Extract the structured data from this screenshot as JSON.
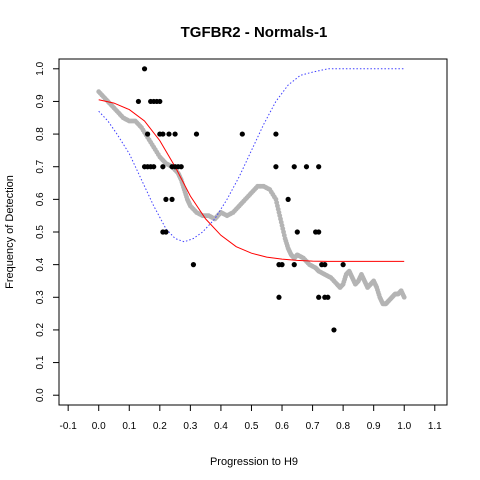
{
  "chart_data": {
    "type": "scatter",
    "title": "TGFBR2 - Normals-1",
    "xlabel": "Progression to H9",
    "ylabel": "Frequency of Detection",
    "xlim": [
      -0.13,
      1.14
    ],
    "ylim": [
      -0.03,
      1.03
    ],
    "x_ticks": [
      "-0.1",
      "0.0",
      "0.1",
      "0.2",
      "0.3",
      "0.4",
      "0.5",
      "0.6",
      "0.7",
      "0.8",
      "0.9",
      "1.0",
      "1.1"
    ],
    "y_ticks": [
      "0.0",
      "0.1",
      "0.2",
      "0.3",
      "0.4",
      "0.5",
      "0.6",
      "0.7",
      "0.8",
      "0.9",
      "1.0"
    ],
    "grid": false,
    "legend": null,
    "series": [
      {
        "style": "points",
        "color": "#000000",
        "points": [
          [
            0.13,
            0.9
          ],
          [
            0.15,
            1.0
          ],
          [
            0.16,
            0.8
          ],
          [
            0.17,
            0.9
          ],
          [
            0.18,
            0.9
          ],
          [
            0.19,
            0.9
          ],
          [
            0.2,
            0.9
          ],
          [
            0.15,
            0.7
          ],
          [
            0.16,
            0.7
          ],
          [
            0.17,
            0.7
          ],
          [
            0.18,
            0.7
          ],
          [
            0.2,
            0.8
          ],
          [
            0.21,
            0.8
          ],
          [
            0.21,
            0.7
          ],
          [
            0.22,
            0.6
          ],
          [
            0.21,
            0.5
          ],
          [
            0.22,
            0.5
          ],
          [
            0.23,
            0.8
          ],
          [
            0.24,
            0.7
          ],
          [
            0.24,
            0.6
          ],
          [
            0.25,
            0.8
          ],
          [
            0.25,
            0.7
          ],
          [
            0.26,
            0.7
          ],
          [
            0.27,
            0.7
          ],
          [
            0.32,
            0.8
          ],
          [
            0.31,
            0.4
          ],
          [
            0.47,
            0.8
          ],
          [
            0.58,
            0.8
          ],
          [
            0.58,
            0.7
          ],
          [
            0.59,
            0.4
          ],
          [
            0.6,
            0.4
          ],
          [
            0.59,
            0.3
          ],
          [
            0.62,
            0.6
          ],
          [
            0.64,
            0.7
          ],
          [
            0.64,
            0.4
          ],
          [
            0.65,
            0.5
          ],
          [
            0.68,
            0.7
          ],
          [
            0.71,
            0.5
          ],
          [
            0.72,
            0.7
          ],
          [
            0.72,
            0.5
          ],
          [
            0.72,
            0.3
          ],
          [
            0.73,
            0.4
          ],
          [
            0.74,
            0.3
          ],
          [
            0.75,
            0.3
          ],
          [
            0.74,
            0.4
          ],
          [
            0.77,
            0.2
          ],
          [
            0.8,
            0.4
          ]
        ]
      },
      {
        "style": "smoothed",
        "color": "#b4b4b4",
        "points": [
          [
            0.0,
            0.93
          ],
          [
            0.02,
            0.91
          ],
          [
            0.04,
            0.89
          ],
          [
            0.06,
            0.87
          ],
          [
            0.08,
            0.85
          ],
          [
            0.1,
            0.84
          ],
          [
            0.12,
            0.84
          ],
          [
            0.14,
            0.82
          ],
          [
            0.16,
            0.79
          ],
          [
            0.18,
            0.76
          ],
          [
            0.2,
            0.73
          ],
          [
            0.22,
            0.71
          ],
          [
            0.24,
            0.7
          ],
          [
            0.26,
            0.68
          ],
          [
            0.27,
            0.66
          ],
          [
            0.28,
            0.63
          ],
          [
            0.29,
            0.6
          ],
          [
            0.3,
            0.58
          ],
          [
            0.32,
            0.56
          ],
          [
            0.34,
            0.55
          ],
          [
            0.36,
            0.55
          ],
          [
            0.38,
            0.54
          ],
          [
            0.39,
            0.55
          ],
          [
            0.4,
            0.56
          ],
          [
            0.42,
            0.55
          ],
          [
            0.44,
            0.56
          ],
          [
            0.46,
            0.58
          ],
          [
            0.48,
            0.6
          ],
          [
            0.5,
            0.62
          ],
          [
            0.52,
            0.64
          ],
          [
            0.54,
            0.64
          ],
          [
            0.56,
            0.63
          ],
          [
            0.58,
            0.6
          ],
          [
            0.59,
            0.56
          ],
          [
            0.6,
            0.52
          ],
          [
            0.61,
            0.48
          ],
          [
            0.62,
            0.45
          ],
          [
            0.63,
            0.43
          ],
          [
            0.64,
            0.42
          ],
          [
            0.65,
            0.43
          ],
          [
            0.67,
            0.42
          ],
          [
            0.69,
            0.4
          ],
          [
            0.71,
            0.39
          ],
          [
            0.72,
            0.38
          ],
          [
            0.74,
            0.37
          ],
          [
            0.76,
            0.36
          ],
          [
            0.78,
            0.34
          ],
          [
            0.79,
            0.33
          ],
          [
            0.8,
            0.34
          ],
          [
            0.81,
            0.37
          ],
          [
            0.82,
            0.38
          ],
          [
            0.83,
            0.36
          ],
          [
            0.84,
            0.34
          ],
          [
            0.85,
            0.35
          ],
          [
            0.86,
            0.37
          ],
          [
            0.87,
            0.35
          ],
          [
            0.88,
            0.33
          ],
          [
            0.89,
            0.34
          ],
          [
            0.9,
            0.35
          ],
          [
            0.91,
            0.33
          ],
          [
            0.92,
            0.3
          ],
          [
            0.93,
            0.28
          ],
          [
            0.94,
            0.28
          ],
          [
            0.95,
            0.29
          ],
          [
            0.96,
            0.3
          ],
          [
            0.97,
            0.31
          ],
          [
            0.98,
            0.31
          ],
          [
            0.99,
            0.32
          ],
          [
            1.0,
            0.3
          ]
        ]
      },
      {
        "style": "line",
        "color": "#ff0000",
        "points": [
          [
            0.0,
            0.905
          ],
          [
            0.05,
            0.895
          ],
          [
            0.1,
            0.875
          ],
          [
            0.15,
            0.84
          ],
          [
            0.2,
            0.78
          ],
          [
            0.25,
            0.7
          ],
          [
            0.3,
            0.61
          ],
          [
            0.35,
            0.54
          ],
          [
            0.4,
            0.49
          ],
          [
            0.45,
            0.455
          ],
          [
            0.5,
            0.435
          ],
          [
            0.55,
            0.423
          ],
          [
            0.6,
            0.417
          ],
          [
            0.65,
            0.413
          ],
          [
            0.7,
            0.411
          ],
          [
            0.75,
            0.41
          ],
          [
            0.8,
            0.41
          ],
          [
            0.9,
            0.41
          ],
          [
            1.0,
            0.41
          ]
        ]
      },
      {
        "style": "dotted",
        "color": "#4040ff",
        "points": [
          [
            0.0,
            0.87
          ],
          [
            0.03,
            0.84
          ],
          [
            0.06,
            0.8
          ],
          [
            0.1,
            0.74
          ],
          [
            0.14,
            0.66
          ],
          [
            0.18,
            0.58
          ],
          [
            0.22,
            0.51
          ],
          [
            0.25,
            0.48
          ],
          [
            0.28,
            0.47
          ],
          [
            0.31,
            0.48
          ],
          [
            0.34,
            0.5
          ],
          [
            0.38,
            0.54
          ],
          [
            0.42,
            0.6
          ],
          [
            0.46,
            0.67
          ],
          [
            0.5,
            0.75
          ],
          [
            0.54,
            0.83
          ],
          [
            0.58,
            0.9
          ],
          [
            0.62,
            0.95
          ],
          [
            0.66,
            0.98
          ],
          [
            0.7,
            0.99
          ],
          [
            0.75,
            1.0
          ],
          [
            0.8,
            1.0
          ],
          [
            0.9,
            1.0
          ],
          [
            1.0,
            1.0
          ]
        ]
      }
    ]
  }
}
